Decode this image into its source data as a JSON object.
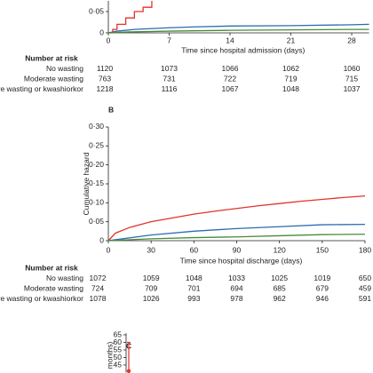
{
  "chart_data": [
    {
      "type": "line",
      "x_label": "Time since hospital admission (days)",
      "xlim": [
        0,
        30
      ],
      "ylim": [
        0,
        0.075
      ],
      "xticks": [
        0,
        7,
        14,
        21,
        28
      ],
      "yticks": [
        0,
        {
          "value": 0.05,
          "label": "0·05"
        }
      ],
      "series": [
        {
          "name": "Severe wasting or kwashiorkor",
          "color": "#e2332b",
          "x": [
            0,
            0.5,
            1,
            2,
            3,
            4,
            5
          ],
          "values": [
            0,
            0.008,
            0.02,
            0.035,
            0.05,
            0.06,
            0.075
          ]
        },
        {
          "name": "Moderate wasting",
          "color": "#2b6cb0",
          "x": [
            0,
            1,
            3,
            7,
            10,
            14,
            21,
            28,
            30
          ],
          "values": [
            0,
            0.004,
            0.008,
            0.012,
            0.014,
            0.016,
            0.017,
            0.019,
            0.02
          ]
        },
        {
          "name": "No wasting",
          "color": "#4a8a3a",
          "x": [
            0,
            2,
            7,
            14,
            21,
            28,
            30
          ],
          "values": [
            0,
            0.002,
            0.004,
            0.006,
            0.007,
            0.008,
            0.008
          ]
        }
      ],
      "risk_table": {
        "title": "Number at risk",
        "rows": [
          {
            "label": "No wasting",
            "counts": [
              "1120",
              "1073",
              "1066",
              "1062",
              "1060"
            ]
          },
          {
            "label": "Moderate wasting",
            "counts": [
              "763",
              "731",
              "722",
              "719",
              "715"
            ]
          },
          {
            "label": "Severe wasting or kwashiorkor",
            "counts": [
              "1218",
              "1116",
              "1067",
              "1048",
              "1037"
            ]
          }
        ]
      }
    },
    {
      "type": "line",
      "panel": "B",
      "y_label": "Cumulative hazard",
      "x_label": "Time since hospital discharge (days)",
      "xlim": [
        0,
        180
      ],
      "ylim": [
        0,
        0.3
      ],
      "xticks": [
        0,
        30,
        60,
        90,
        120,
        150,
        180
      ],
      "yticks": [
        0,
        {
          "value": 0.05,
          "label": "0·05"
        },
        {
          "value": 0.1,
          "label": "0·10"
        },
        {
          "value": 0.15,
          "label": "0·15"
        },
        {
          "value": 0.2,
          "label": "0·20"
        },
        {
          "value": 0.25,
          "label": "0·25"
        },
        {
          "value": 0.3,
          "label": "0·30"
        }
      ],
      "series": [
        {
          "name": "Severe wasting or kwashiorkor",
          "color": "#e2332b",
          "x": [
            0,
            5,
            15,
            30,
            45,
            60,
            75,
            90,
            105,
            120,
            135,
            150,
            165,
            180
          ],
          "values": [
            0,
            0.02,
            0.035,
            0.05,
            0.06,
            0.07,
            0.078,
            0.085,
            0.092,
            0.098,
            0.104,
            0.109,
            0.114,
            0.118
          ]
        },
        {
          "name": "Moderate wasting",
          "color": "#2b6cb0",
          "x": [
            0,
            30,
            60,
            90,
            120,
            150,
            180
          ],
          "values": [
            0,
            0.015,
            0.025,
            0.032,
            0.037,
            0.042,
            0.043
          ]
        },
        {
          "name": "No wasting",
          "color": "#4a8a3a",
          "x": [
            0,
            30,
            60,
            90,
            120,
            150,
            180
          ],
          "values": [
            0,
            0.005,
            0.008,
            0.01,
            0.013,
            0.016,
            0.017
          ]
        }
      ],
      "risk_table": {
        "title": "Number at risk",
        "rows": [
          {
            "label": "No wasting",
            "counts": [
              "1072",
              "1059",
              "1048",
              "1033",
              "1025",
              "1019",
              "650"
            ]
          },
          {
            "label": "Moderate wasting",
            "counts": [
              "724",
              "709",
              "701",
              "694",
              "685",
              "679",
              "459"
            ]
          },
          {
            "label": "Severe wasting or kwashiorkor",
            "counts": [
              "1078",
              "1026",
              "993",
              "978",
              "962",
              "946",
              "591"
            ]
          }
        ]
      }
    },
    {
      "type": "errorbar",
      "panel": "C",
      "y_label": "months)",
      "ylim": [
        40,
        66
      ],
      "yticks": [
        45,
        50,
        55,
        60,
        65
      ],
      "values": [
        41
      ],
      "errors": [
        19
      ],
      "color": "#e2332b"
    }
  ]
}
